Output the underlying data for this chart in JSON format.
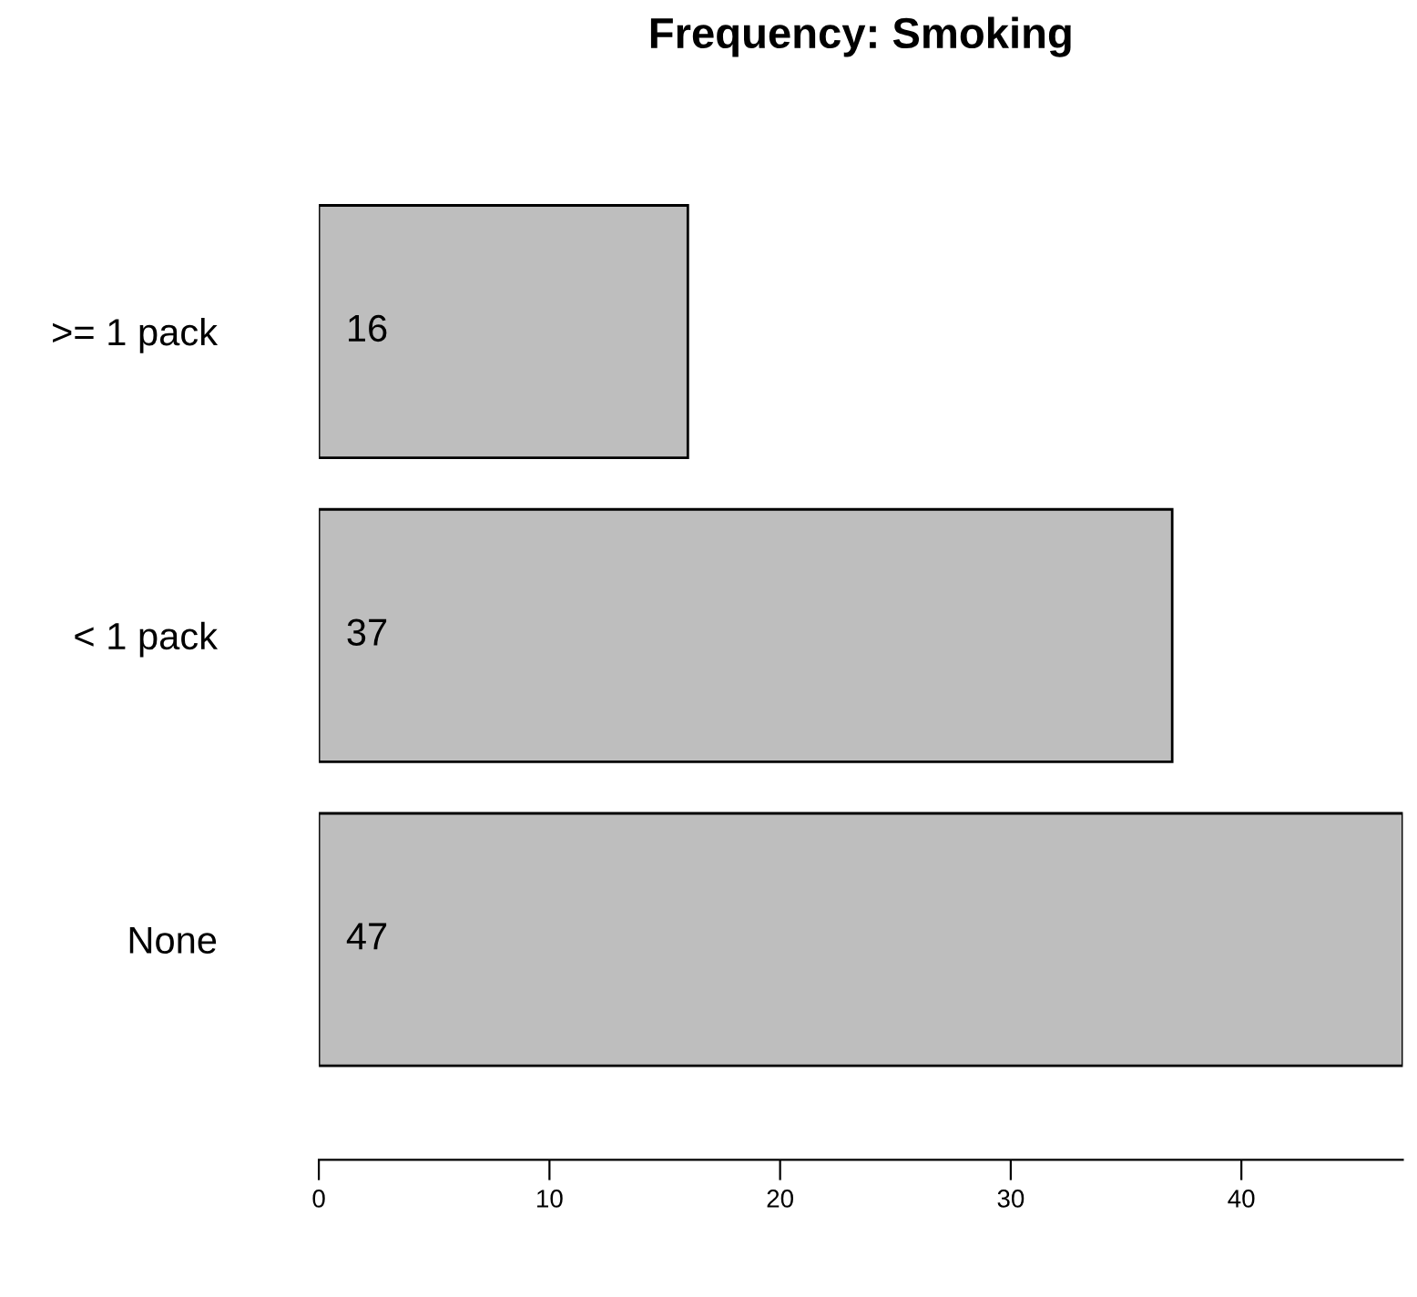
{
  "chart_data": {
    "type": "bar",
    "orientation": "horizontal",
    "title": "Frequency: Smoking",
    "categories": [
      ">= 1 pack",
      "< 1 pack",
      "None"
    ],
    "values": [
      16,
      37,
      47
    ],
    "color": "#bebebe",
    "xlim": [
      0,
      47
    ],
    "xticks": [
      0,
      10,
      20,
      30,
      40
    ],
    "grid": false,
    "data_labels": true
  }
}
